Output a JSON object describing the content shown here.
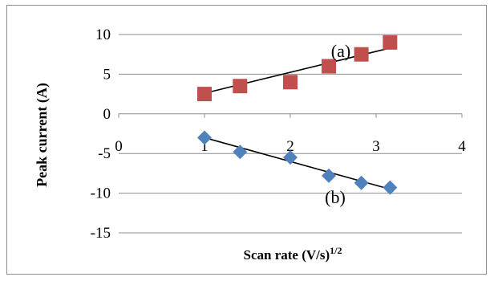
{
  "chart_data": {
    "type": "scatter",
    "xlabel": "Scan rate (V/s)",
    "xlabel_sup": "1/2",
    "ylabel": "Peak current (A)",
    "xlim": [
      0,
      4
    ],
    "ylim": [
      -15,
      10
    ],
    "x_ticks": [
      0,
      1,
      2,
      3,
      4
    ],
    "y_ticks": [
      10,
      5,
      0,
      -5,
      -10,
      -15
    ],
    "grid": "horizontal",
    "legend": "none",
    "series": [
      {
        "label": "(a)",
        "marker": "square",
        "color": "#c0504d",
        "x": [
          1.0,
          1.414,
          2.0,
          2.449,
          2.828,
          3.162
        ],
        "y": [
          2.5,
          3.5,
          4.0,
          6.0,
          7.5,
          9.0
        ],
        "trendline": {
          "x": [
            1.0,
            3.162
          ],
          "y": [
            2.6,
            8.3
          ]
        }
      },
      {
        "label": "(b)",
        "marker": "diamond",
        "color": "#4f81bd",
        "x": [
          1.0,
          1.414,
          2.0,
          2.449,
          2.828,
          3.162
        ],
        "y": [
          -3.0,
          -4.8,
          -5.5,
          -7.8,
          -8.7,
          -9.3
        ],
        "trendline": {
          "x": [
            1.0,
            3.162
          ],
          "y": [
            -3.0,
            -9.5
          ]
        }
      }
    ]
  }
}
